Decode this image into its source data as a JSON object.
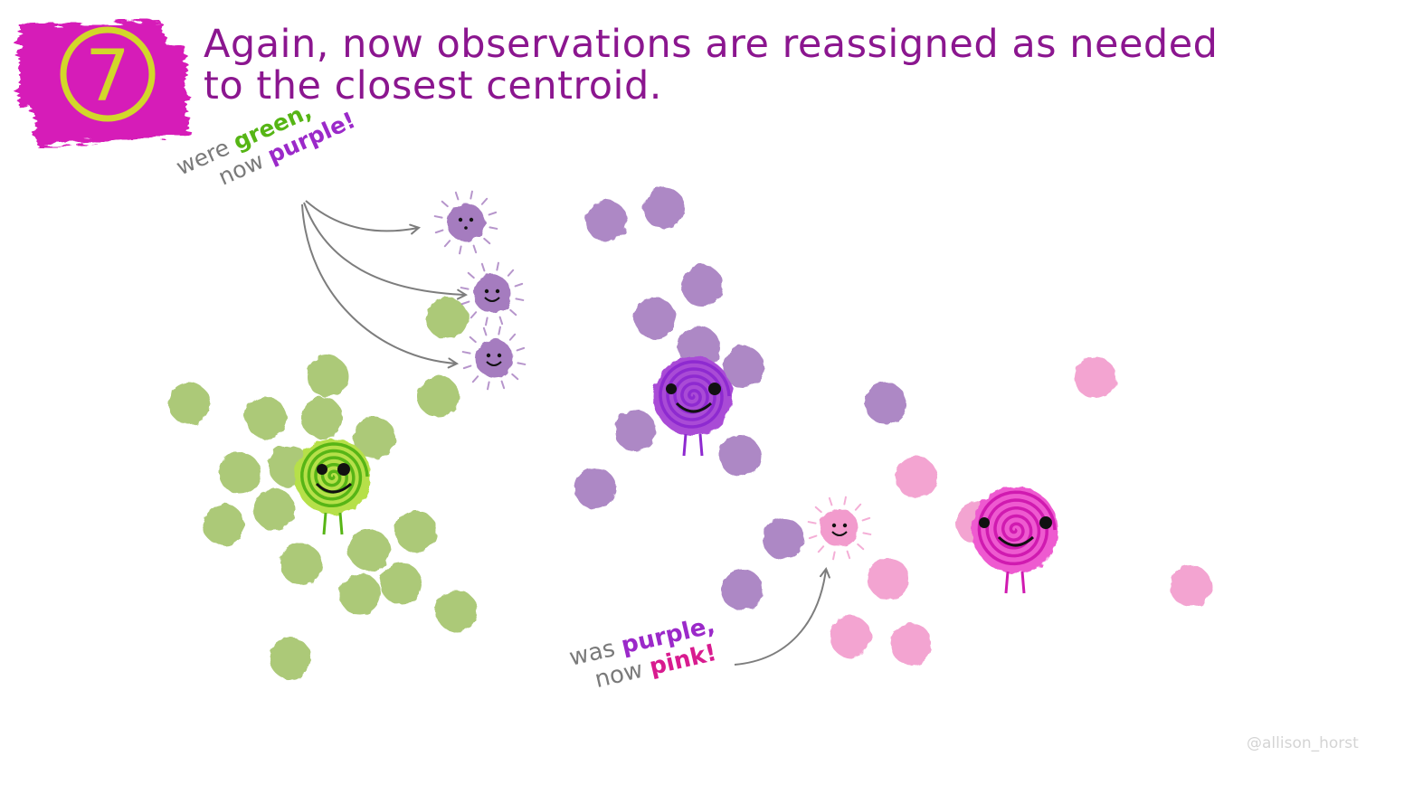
{
  "step": {
    "number": "7"
  },
  "headline": {
    "line1": "Again, now observations are reassigned as needed",
    "line2": "to the closest centroid."
  },
  "annotation_green_to_purple": {
    "word1": "were",
    "word2": "green,",
    "word3": "now",
    "word4": "purple!"
  },
  "annotation_purple_to_pink": {
    "word1": "was",
    "word2": "purple,",
    "word3": "now",
    "word4": "pink!"
  },
  "credit": "@allison_horst",
  "colors": {
    "green": "#a4c46a",
    "purple": "#a57bbf",
    "pink": "#f29bcd",
    "magenta": "#e01bb0",
    "step_badge": "#d2d72a",
    "headline_text": "#8b168f"
  },
  "clusters": {
    "green": {
      "points": 23,
      "centroid": "green-spiral-centroid"
    },
    "purple": {
      "points": 16,
      "centroid": "purple-spiral-centroid"
    },
    "pink": {
      "points": 9,
      "centroid": "pink-spiral-centroid"
    }
  }
}
